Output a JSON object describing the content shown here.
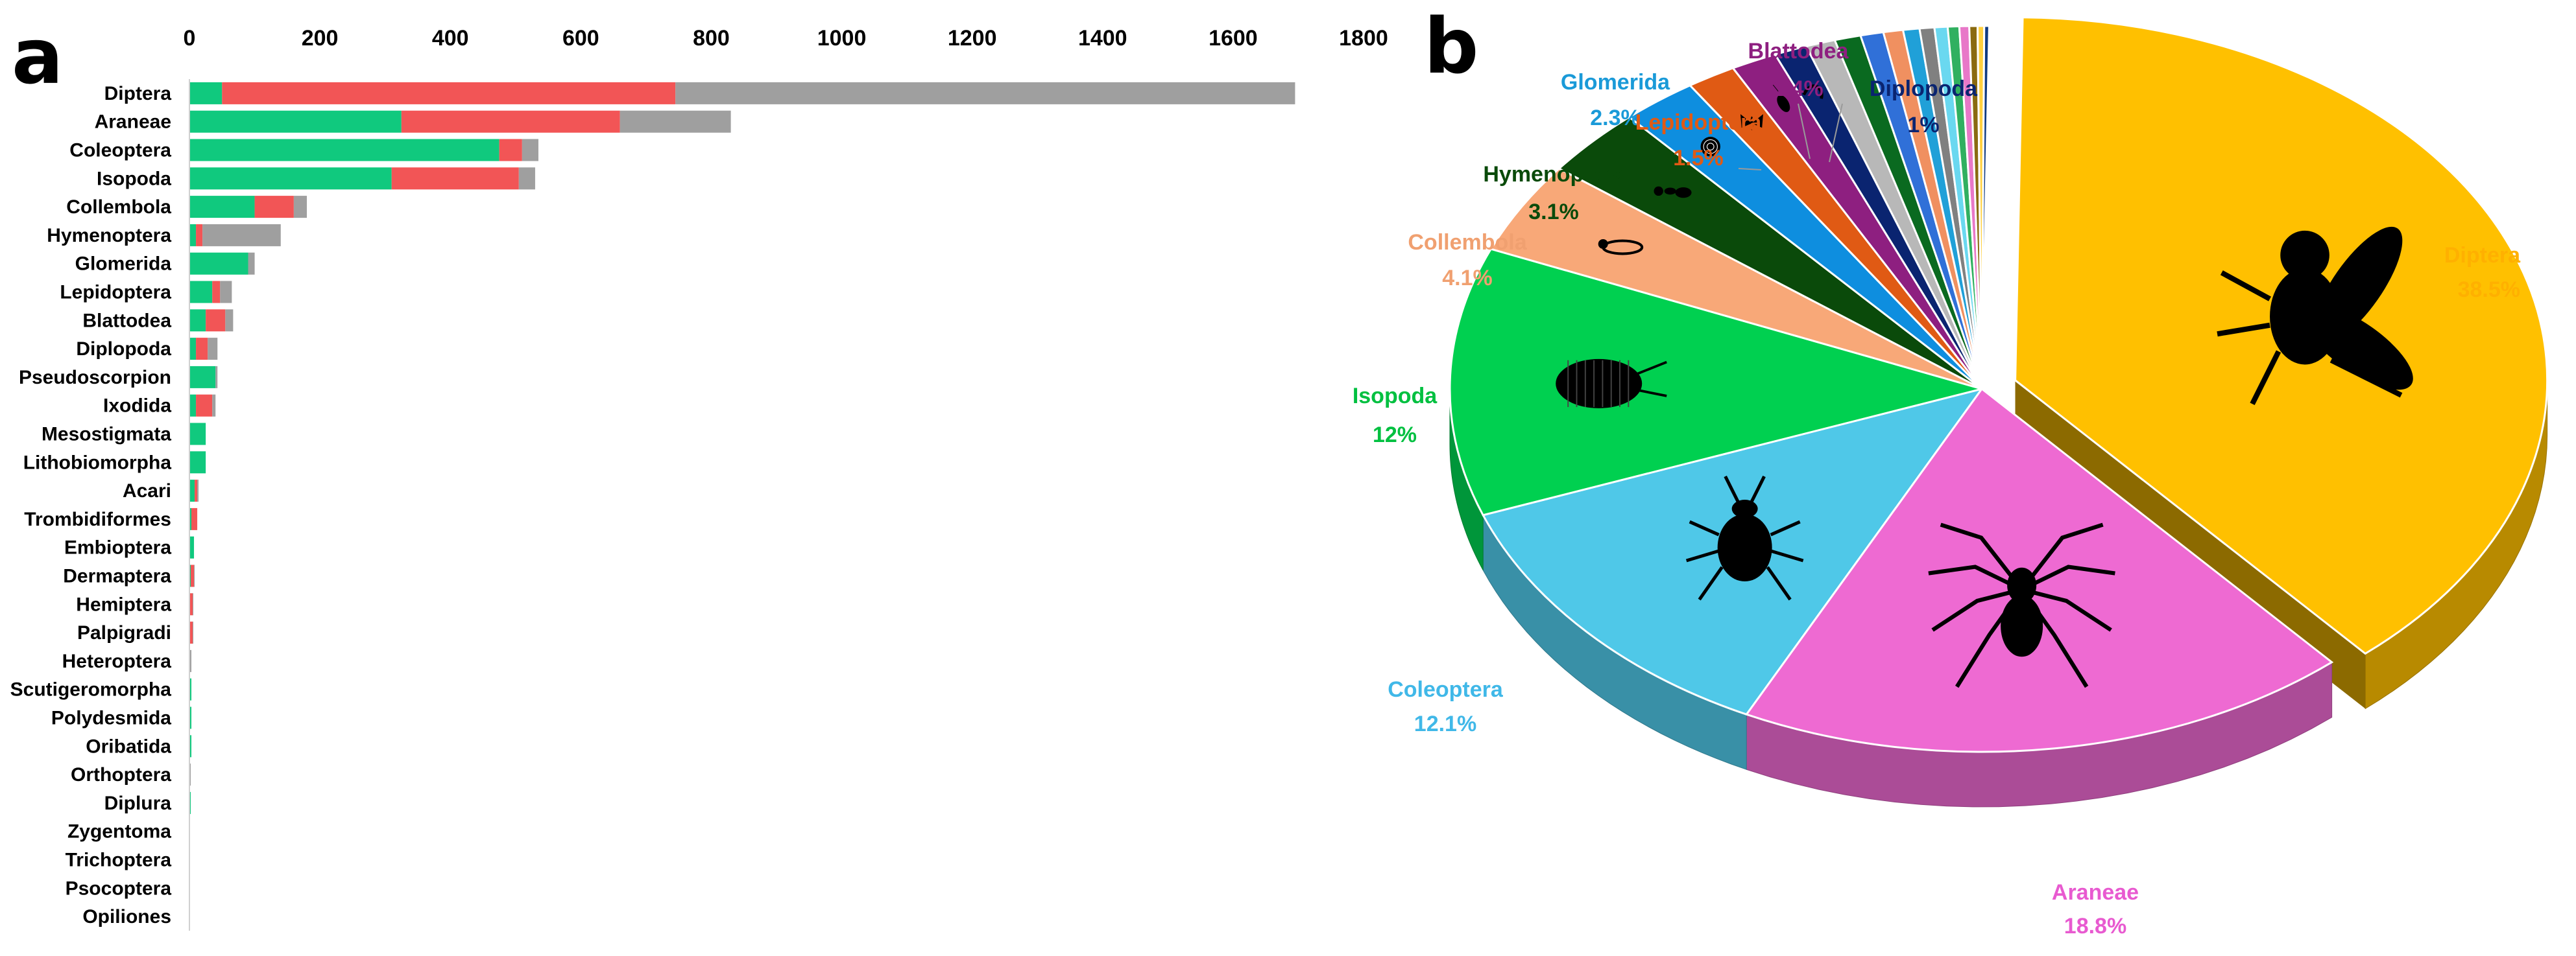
{
  "figure": {
    "panel_a_letter": "a",
    "panel_b_letter": "b"
  },
  "colors": {
    "bar_green": "#10c97e",
    "bar_red": "#f25556",
    "bar_gray": "#9f9f9f",
    "pie_edge": "#ffffff"
  },
  "chart_data": [
    {
      "type": "bar",
      "orientation": "horizontal",
      "stacked": true,
      "title": "",
      "xlabel": "",
      "ylabel": "",
      "xlim": [
        0,
        1800
      ],
      "x_ticks": [
        "0",
        "200",
        "400",
        "600",
        "800",
        "1000",
        "1200",
        "1400",
        "1600",
        "1800"
      ],
      "x_axis_position": "top",
      "grid": false,
      "categories": [
        "Diptera",
        "Araneae",
        "Coleoptera",
        "Isopoda",
        "Collembola",
        "Hymenoptera",
        "Glomerida",
        "Lepidoptera",
        "Blattodea",
        "Diplopoda",
        "Pseudoscorpion",
        "Ixodida",
        "Mesostigmata",
        "Lithobiomorpha",
        "Acari",
        "Trombidiformes",
        "Embioptera",
        "Dermaptera",
        "Hemiptera",
        "Palpigradi",
        "Heteroptera",
        "Scutigeromorpha",
        "Polydesmida",
        "Oribatida",
        "Orthoptera",
        "Diplura",
        "Zygentoma",
        "Trichoptera",
        "Psocoptera",
        "Opiliones"
      ],
      "series": [
        {
          "name": "green",
          "color": "#10c97e",
          "values": [
            50,
            325,
            475,
            310,
            100,
            10,
            90,
            35,
            25,
            10,
            40,
            10,
            25,
            25,
            8,
            3,
            7,
            2,
            1,
            1,
            0,
            3,
            3,
            3,
            1,
            2,
            1,
            1,
            1,
            1
          ]
        },
        {
          "name": "red",
          "color": "#f25556",
          "values": [
            695,
            335,
            35,
            195,
            60,
            10,
            0,
            12,
            30,
            18,
            0,
            25,
            0,
            0,
            4,
            9,
            0,
            5,
            4,
            4,
            1,
            0,
            0,
            0,
            0,
            0,
            0,
            0,
            0,
            0
          ]
        },
        {
          "name": "gray",
          "color": "#9f9f9f",
          "values": [
            950,
            170,
            25,
            25,
            20,
            120,
            10,
            18,
            12,
            15,
            3,
            5,
            0,
            0,
            2,
            0,
            0,
            1,
            1,
            1,
            2,
            0,
            0,
            0,
            1,
            0,
            0,
            0,
            0,
            0
          ]
        }
      ]
    },
    {
      "type": "pie",
      "style": "3d-exploded",
      "title": "",
      "slices": [
        {
          "name": "Diptera",
          "value": 38.5,
          "label": "38.5%",
          "color": "#ffc000",
          "exploded": true
        },
        {
          "name": "Araneae",
          "value": 18.8,
          "label": "18.8%",
          "color": "#ee6ad2"
        },
        {
          "name": "Coleoptera",
          "value": 12.1,
          "label": "12.1%",
          "color": "#4fc8e8"
        },
        {
          "name": "Isopoda",
          "value": 12,
          "label": "12%",
          "color": "#00d050"
        },
        {
          "name": "Collembola",
          "value": 4.1,
          "label": "4.1%",
          "color": "#f8a878"
        },
        {
          "name": "Hymenoptera",
          "value": 3.1,
          "label": "3.1%",
          "color": "#0a4a0a"
        },
        {
          "name": "Glomerida",
          "value": 2.3,
          "label": "2.3%",
          "color": "#0e8edf"
        },
        {
          "name": "Lepidoptera",
          "value": 1.5,
          "label": "1.5%",
          "color": "#e05a14"
        },
        {
          "name": "Blattodea",
          "value": 1.4,
          "label": "1.4%",
          "color": "#8e1f80"
        },
        {
          "name": "Diplopoda",
          "value": 1,
          "label": "1%",
          "color": "#0a2470"
        },
        {
          "name": "",
          "value": 0.9,
          "color": "#b8b8b8"
        },
        {
          "name": "",
          "value": 0.8,
          "color": "#0a6a20"
        },
        {
          "name": "",
          "value": 0.7,
          "color": "#3070d8"
        },
        {
          "name": "",
          "value": 0.6,
          "color": "#f09060"
        },
        {
          "name": "",
          "value": 0.5,
          "color": "#20a0d8"
        },
        {
          "name": "",
          "value": 0.45,
          "color": "#808080"
        },
        {
          "name": "",
          "value": 0.4,
          "color": "#6ad8f0"
        },
        {
          "name": "",
          "value": 0.35,
          "color": "#30b060"
        },
        {
          "name": "",
          "value": 0.3,
          "color": "#e878c8"
        },
        {
          "name": "",
          "value": 0.25,
          "color": "#8a6a10"
        },
        {
          "name": "",
          "value": 0.2,
          "color": "#ffd040"
        },
        {
          "name": "",
          "value": 0.15,
          "color": "#103a80"
        }
      ],
      "label_colors": {
        "Diptera": "#ffb000",
        "Araneae": "#e85ad0",
        "Coleoptera": "#40b8e8",
        "Isopoda": "#00c040",
        "Collembola": "#f0a070",
        "Hymenoptera": "#0a4a0a",
        "Glomerida": "#1a9ad8",
        "Lepidoptera": "#e05a14",
        "Blattodea": "#8e1f80",
        "Diplopoda": "#0a2470"
      },
      "silhouettes": [
        "fly-icon",
        "spider-icon",
        "beetle-icon",
        "woodlouse-icon",
        "springtail-icon",
        "ant-icon",
        "pill-millipede-icon",
        "moth-icon",
        "cockroach-icon",
        "millipede-icon"
      ]
    }
  ]
}
